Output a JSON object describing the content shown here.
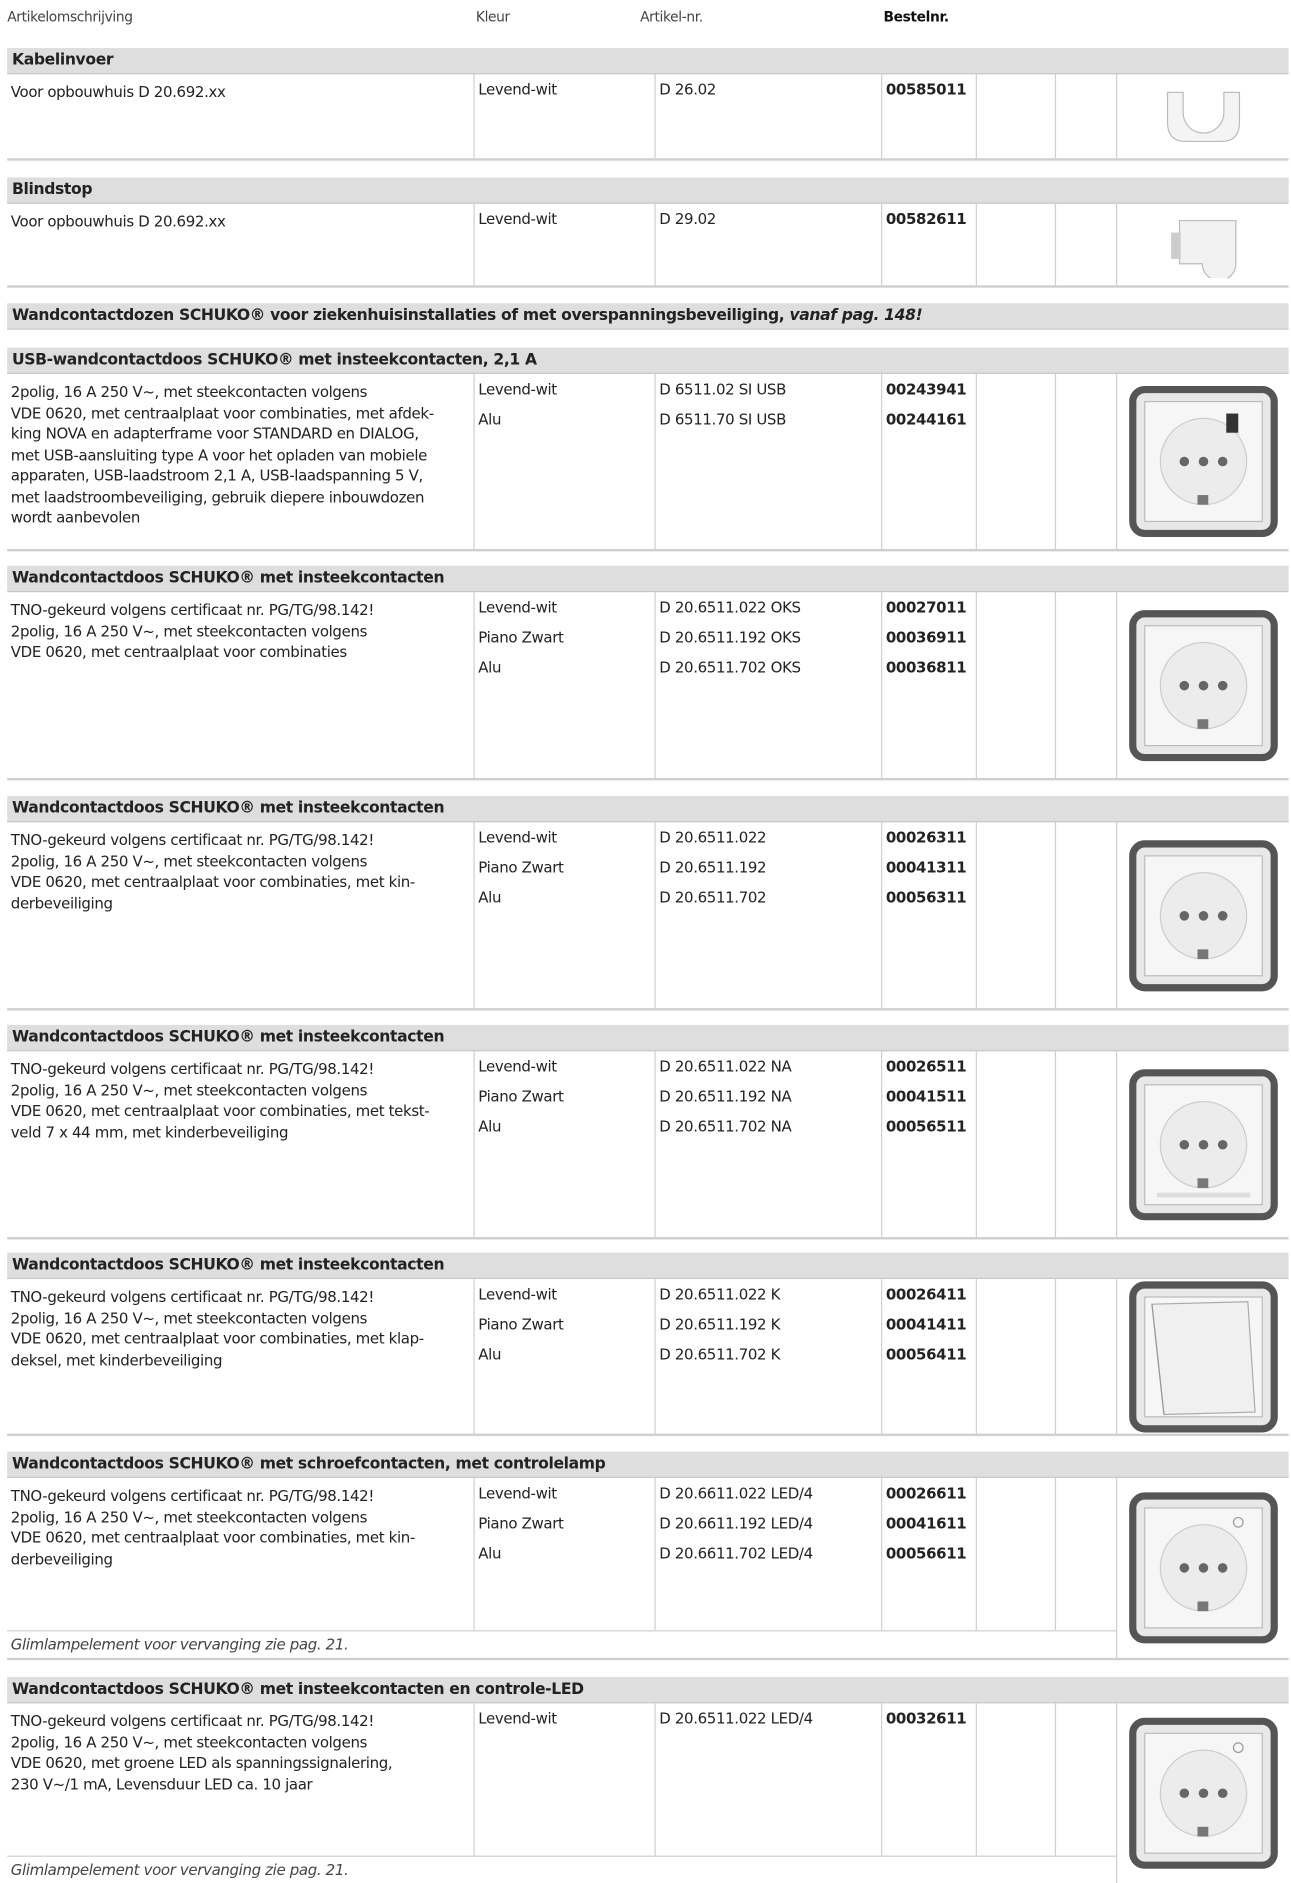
{
  "header": {
    "columns": [
      "Artikelomschrijving",
      "Kleur",
      "Artikel-nr.",
      "Bestelnr."
    ]
  },
  "sections": [
    {
      "title": "Kabelinvoer",
      "rows": [
        {
          "description_lines": [
            "Voor opbouwhuis D 20.692.xx"
          ],
          "variants": [
            {
              "color": "Levend-wit",
              "article": "D 26.02",
              "order": "00585011"
            }
          ]
        }
      ]
    },
    {
      "title": "Blindstop",
      "rows": [
        {
          "description_lines": [
            "Voor opbouwhuis D 20.692.xx"
          ],
          "variants": [
            {
              "color": "Levend-wit",
              "article": "D 29.02",
              "order": "00582611"
            }
          ]
        }
      ]
    },
    {
      "title": "Wandcontactdozen SCHUKO® voor ziekenhuisinstallaties of met overspanningsbeveiliging, ",
      "title_italic": "vanaf pag. 148!"
    },
    {
      "title": "USB-wandcontactdoos SCHUKO® met insteekcontacten, 2,1 A",
      "rows": [
        {
          "description_lines": [
            "2polig, 16 A 250 V~, met steekcontacten volgens",
            "VDE 0620, met centraalplaat voor combinaties, met afdek-",
            "king NOVA en adapterframe voor STANDARD en DIALOG,",
            "met USB-aansluiting type A voor het opladen van mobiele",
            "apparaten, USB-laadstroom 2,1 A, USB-laadspanning 5 V,",
            "met laadstroombeveiliging, gebruik diepere inbouwdozen",
            "wordt aanbevolen"
          ],
          "variants": [
            {
              "color": "Levend-wit",
              "article": "D 6511.02 SI USB",
              "order": "00243941"
            },
            {
              "color": "Alu",
              "article": "D 6511.70 SI USB",
              "order": "00244161"
            }
          ]
        }
      ]
    },
    {
      "title": "Wandcontactdoos SCHUKO® met insteekcontacten",
      "rows": [
        {
          "description_lines": [
            "TNO-gekeurd volgens certificaat nr. PG/TG/98.142!",
            "2polig, 16 A 250 V~, met steekcontacten volgens",
            "VDE 0620, met centraalplaat voor combinaties"
          ],
          "variants": [
            {
              "color": "Levend-wit",
              "article": "D 20.6511.022 OKS",
              "order": "00027011"
            },
            {
              "color": "Piano Zwart",
              "article": "D 20.6511.192 OKS",
              "order": "00036911"
            },
            {
              "color": "Alu",
              "article": "D 20.6511.702 OKS",
              "order": "00036811"
            }
          ]
        }
      ]
    },
    {
      "title": "Wandcontactdoos SCHUKO® met insteekcontacten",
      "rows": [
        {
          "description_lines": [
            "TNO-gekeurd volgens certificaat nr. PG/TG/98.142!",
            "2polig, 16 A 250 V~, met steekcontacten volgens",
            "VDE 0620, met centraalplaat voor combinaties, met kin-",
            "derbeveiliging"
          ],
          "variants": [
            {
              "color": "Levend-wit",
              "article": "D 20.6511.022",
              "order": "00026311"
            },
            {
              "color": "Piano Zwart",
              "article": "D 20.6511.192",
              "order": "00041311"
            },
            {
              "color": "Alu",
              "article": "D 20.6511.702",
              "order": "00056311"
            }
          ]
        }
      ]
    },
    {
      "title": "Wandcontactdoos SCHUKO® met insteekcontacten",
      "rows": [
        {
          "description_lines": [
            "TNO-gekeurd volgens certificaat nr. PG/TG/98.142!",
            "2polig, 16 A 250 V~, met steekcontacten volgens",
            "VDE 0620, met centraalplaat voor combinaties, met tekst-",
            "veld 7 x 44 mm, met kinderbeveiliging"
          ],
          "variants": [
            {
              "color": "Levend-wit",
              "article": "D 20.6511.022 NA",
              "order": "00026511"
            },
            {
              "color": "Piano Zwart",
              "article": "D 20.6511.192 NA",
              "order": "00041511"
            },
            {
              "color": "Alu",
              "article": "D 20.6511.702 NA",
              "order": "00056511"
            }
          ]
        }
      ]
    },
    {
      "title": "Wandcontactdoos SCHUKO® met insteekcontacten",
      "rows": [
        {
          "description_lines": [
            "TNO-gekeurd volgens certificaat nr. PG/TG/98.142!",
            "2polig, 16 A 250 V~, met steekcontacten volgens",
            "VDE 0620, met centraalplaat voor combinaties, met klap-",
            "deksel, met kinderbeveiliging"
          ],
          "variants": [
            {
              "color": "Levend-wit",
              "article": "D 20.6511.022 K",
              "order": "00026411"
            },
            {
              "color": "Piano Zwart",
              "article": "D 20.6511.192 K",
              "order": "00041411"
            },
            {
              "color": "Alu",
              "article": "D 20.6511.702 K",
              "order": "00056411"
            }
          ]
        }
      ]
    },
    {
      "title": "Wandcontactdoos SCHUKO® met schroefcontacten, met controlelamp",
      "rows": [
        {
          "description_lines": [
            "TNO-gekeurd volgens certificaat nr. PG/TG/98.142!",
            "2polig, 16 A 250 V~, met steekcontacten volgens",
            "VDE 0620, met centraalplaat voor combinaties, met kin-",
            "derbeveiliging"
          ],
          "variants": [
            {
              "color": "Levend-wit",
              "article": "D 20.6611.022 LED/4",
              "order": "00026611"
            },
            {
              "color": "Piano Zwart",
              "article": "D 20.6611.192 LED/4",
              "order": "00041611"
            },
            {
              "color": "Alu",
              "article": "D 20.6611.702 LED/4",
              "order": "00056611"
            }
          ]
        }
      ],
      "note": "Glimlampelement voor vervanging zie pag. 21."
    },
    {
      "title": "Wandcontactdoos SCHUKO® met insteekcontacten en controle-LED",
      "rows": [
        {
          "description_lines": [
            "TNO-gekeurd volgens certificaat nr. PG/TG/98.142!",
            "2polig, 16 A 250 V~, met steekcontacten volgens",
            "VDE 0620, met groene LED als spanningssignalering,",
            "230 V~/1 mA, Levensduur LED ca. 10 jaar"
          ],
          "variants": [
            {
              "color": "Levend-wit",
              "article": "D 20.6511.022 LED/4",
              "order": "00032611"
            }
          ]
        }
      ],
      "note": "Glimlampelement voor vervanging zie pag. 21."
    }
  ]
}
